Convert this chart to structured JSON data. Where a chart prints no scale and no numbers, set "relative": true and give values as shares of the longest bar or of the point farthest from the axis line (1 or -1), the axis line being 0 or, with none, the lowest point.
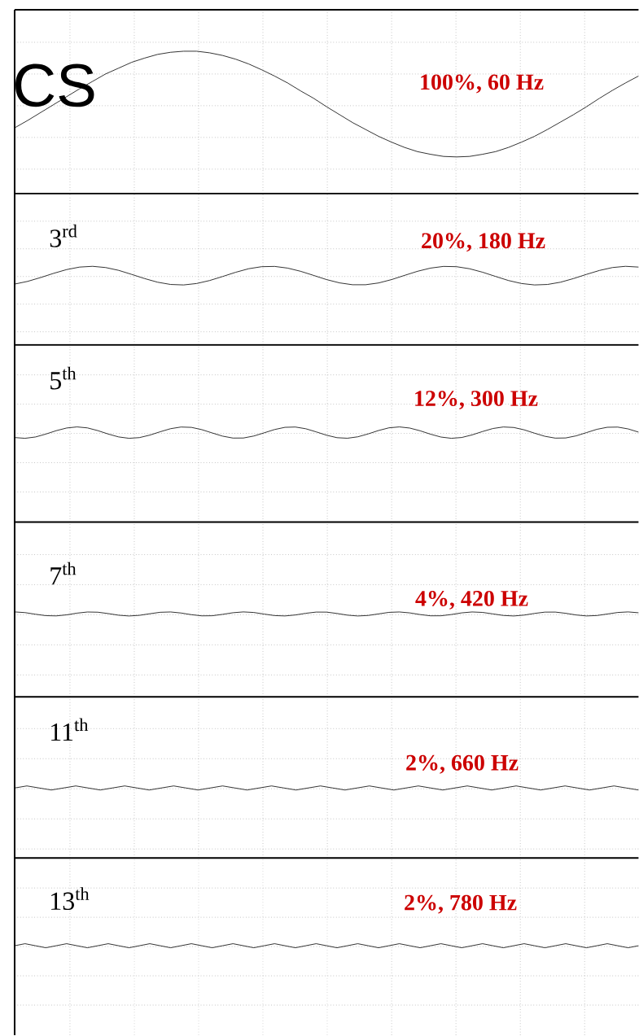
{
  "chart_data": [
    {
      "type": "line",
      "relative": true,
      "grid": true,
      "categories": [
        null,
        null,
        null,
        null,
        null,
        null,
        null,
        null,
        null,
        null,
        null,
        null,
        null,
        null,
        null,
        null,
        null,
        null,
        null,
        null,
        null,
        null,
        null,
        null,
        null,
        null,
        null,
        null,
        null,
        null,
        null,
        null,
        null,
        null,
        null,
        null,
        null,
        null,
        null,
        null,
        null,
        null,
        null,
        null,
        null,
        null,
        null,
        null,
        null
      ],
      "series": [
        {
          "color": "#000000",
          "values": [
            -0.45,
            -0.31,
            -0.16,
            -0.01,
            0.14,
            0.29,
            0.43,
            0.57,
            0.68,
            0.79,
            0.87,
            0.94,
            0.98,
            1.0,
            1.0,
            0.97,
            0.92,
            0.85,
            0.76,
            0.65,
            0.53,
            0.4,
            0.25,
            0.11,
            -0.05,
            -0.2,
            -0.35,
            -0.48,
            -0.61,
            -0.72,
            -0.82,
            -0.9,
            -0.95,
            -0.99,
            -1.0,
            -0.99,
            -0.95,
            -0.9,
            -0.82,
            -0.72,
            -0.61,
            -0.48,
            -0.34,
            -0.2,
            -0.05,
            0.11,
            0.26,
            0.4,
            0.53
          ]
        }
      ],
      "annotations": [
        "CS",
        "100%, 60 Hz"
      ]
    },
    {
      "type": "line",
      "relative": true,
      "grid": true,
      "categories": [
        null,
        null,
        null,
        null,
        null,
        null,
        null,
        null,
        null,
        null,
        null,
        null,
        null,
        null,
        null,
        null,
        null,
        null,
        null,
        null,
        null,
        null,
        null,
        null,
        null,
        null,
        null,
        null,
        null,
        null,
        null,
        null,
        null,
        null,
        null,
        null,
        null,
        null,
        null,
        null,
        null,
        null,
        null,
        null,
        null,
        null,
        null,
        null,
        null
      ],
      "series": [
        {
          "color": "#000000",
          "values": [
            -0.9,
            -0.61,
            -0.2,
            0.25,
            0.65,
            0.92,
            1.0,
            0.87,
            0.57,
            0.14,
            -0.31,
            -0.7,
            -0.94,
            -0.99,
            -0.84,
            -0.52,
            -0.09,
            0.36,
            0.74,
            0.96,
            0.99,
            0.81,
            0.47,
            0.03,
            -0.42,
            -0.77,
            -0.97,
            -0.97,
            -0.78,
            -0.42,
            0.03,
            0.47,
            0.81,
            0.99,
            0.96,
            0.74,
            0.37,
            -0.08,
            -0.52,
            -0.84,
            -0.99,
            -0.94,
            -0.7,
            -0.31,
            0.14,
            0.56,
            0.87,
            1.0,
            0.92
          ]
        }
      ],
      "annotations": [
        "3$^{rd}$",
        "20%, 180 Hz"
      ]
    },
    {
      "type": "line",
      "relative": true,
      "grid": true,
      "categories": [
        null,
        null,
        null,
        null,
        null,
        null,
        null,
        null,
        null,
        null,
        null,
        null,
        null,
        null,
        null,
        null,
        null,
        null,
        null,
        null,
        null,
        null,
        null,
        null,
        null,
        null,
        null,
        null,
        null,
        null,
        null,
        null,
        null,
        null,
        null,
        null,
        null,
        null,
        null,
        null,
        null,
        null,
        null,
        null,
        null,
        null,
        null,
        null,
        null,
        null,
        null,
        null,
        null,
        null,
        null,
        null,
        null,
        null,
        null,
        null,
        null
      ],
      "series": [
        {
          "color": "#000000",
          "values": [
            -0.87,
            -1.0,
            -0.77,
            -0.26,
            0.34,
            0.81,
            1.0,
            0.83,
            0.35,
            -0.25,
            -0.76,
            -1.0,
            -0.88,
            -0.44,
            0.15,
            0.69,
            0.98,
            0.92,
            0.52,
            -0.06,
            -0.62,
            -0.96,
            -0.95,
            -0.6,
            -0.04,
            0.54,
            0.93,
            0.98,
            0.68,
            0.13,
            -0.46,
            -0.89,
            -0.99,
            -0.74,
            -0.23,
            0.37,
            0.84,
            1.0,
            0.8,
            0.32,
            -0.28,
            -0.78,
            -1.0,
            -0.86,
            -0.4,
            0.19,
            0.72,
            0.99,
            0.9,
            0.49,
            -0.1,
            -0.65,
            -0.97,
            -0.94,
            -0.57,
            0.0,
            0.58,
            0.94,
            0.97,
            0.65,
            0.09
          ]
        }
      ],
      "annotations": [
        "5$^{th}$",
        "12%, 300 Hz"
      ]
    },
    {
      "type": "line",
      "relative": true,
      "grid": true,
      "categories": [
        null,
        null,
        null,
        null,
        null,
        null,
        null,
        null,
        null,
        null,
        null,
        null,
        null,
        null,
        null,
        null,
        null,
        null,
        null,
        null,
        null,
        null,
        null,
        null,
        null,
        null,
        null,
        null,
        null,
        null,
        null,
        null,
        null,
        null,
        null,
        null,
        null,
        null,
        null,
        null,
        null,
        null,
        null,
        null,
        null,
        null,
        null,
        null,
        null,
        null,
        null,
        null,
        null,
        null,
        null,
        null,
        null,
        null,
        null,
        null,
        null
      ],
      "series": [
        {
          "color": "#000000",
          "values": [
            1.0,
            0.66,
            -0.14,
            -0.84,
            -0.96,
            -0.44,
            0.4,
            0.96,
            0.86,
            0.18,
            -0.62,
            -1.0,
            -0.68,
            0.1,
            0.82,
            0.98,
            0.46,
            -0.36,
            -0.94,
            -0.88,
            -0.2,
            0.6,
            1.0,
            0.72,
            -0.06,
            -0.8,
            -0.98,
            -0.5,
            0.32,
            0.92,
            0.9,
            0.24,
            -0.58,
            -1.0,
            -0.74,
            0.02,
            0.78,
            0.98,
            0.52,
            -0.3,
            -0.92,
            -0.9,
            -0.28,
            0.54,
            0.98,
            0.76,
            0.02,
            -0.74,
            -1.0,
            -0.56,
            0.26,
            0.9,
            0.92,
            0.32,
            -0.5,
            -0.98,
            -0.78,
            -0.04,
            0.72,
            1.0,
            0.58
          ]
        }
      ],
      "annotations": [
        "7$^{th}$",
        "4%, 420 Hz"
      ]
    },
    {
      "type": "line",
      "relative": true,
      "grid": true,
      "categories": [
        null,
        null,
        null,
        null,
        null,
        null,
        null,
        null,
        null,
        null,
        null,
        null,
        null,
        null,
        null,
        null,
        null,
        null,
        null,
        null,
        null,
        null,
        null,
        null,
        null,
        null,
        null,
        null,
        null,
        null,
        null,
        null,
        null,
        null,
        null,
        null,
        null,
        null,
        null,
        null,
        null,
        null,
        null,
        null,
        null,
        null,
        null,
        null,
        null,
        null,
        null,
        null
      ],
      "series": [
        {
          "color": "#000000",
          "values": [
            0,
            1,
            0,
            -1,
            0,
            1,
            0,
            -1,
            0,
            1,
            0,
            -1,
            0,
            1,
            0,
            -1,
            0,
            1,
            0,
            -1,
            0,
            1,
            0,
            -1,
            0,
            1,
            0,
            -1,
            0,
            1,
            0,
            -1,
            0,
            1,
            0,
            -1,
            0,
            1,
            0,
            -1,
            0,
            1,
            0,
            -1,
            0,
            1,
            0,
            -1,
            0,
            1,
            0,
            -1
          ]
        }
      ],
      "annotations": [
        "11$^{th}$",
        "2%, 660 Hz"
      ]
    },
    {
      "type": "line",
      "relative": true,
      "grid": true,
      "categories": [
        null,
        null,
        null,
        null,
        null,
        null,
        null,
        null,
        null,
        null,
        null,
        null,
        null,
        null,
        null,
        null,
        null,
        null,
        null,
        null,
        null,
        null,
        null,
        null,
        null,
        null,
        null,
        null,
        null,
        null,
        null,
        null,
        null,
        null,
        null,
        null,
        null,
        null,
        null,
        null,
        null,
        null,
        null,
        null,
        null,
        null,
        null,
        null,
        null,
        null,
        null,
        null,
        null,
        null,
        null,
        null,
        null,
        null,
        null,
        null,
        null
      ],
      "series": [
        {
          "color": "#000000",
          "values": [
            0,
            1,
            0,
            -1,
            0,
            1,
            0,
            -1,
            0,
            1,
            0,
            -1,
            0,
            1,
            0,
            -1,
            0,
            1,
            0,
            -1,
            0,
            1,
            0,
            -1,
            0,
            1,
            0,
            -1,
            0,
            1,
            0,
            -1,
            0,
            1,
            0,
            -1,
            0,
            1,
            0,
            -1,
            0,
            1,
            0,
            -1,
            0,
            1,
            0,
            -1,
            0,
            1,
            0,
            -1,
            0,
            1,
            0,
            -1,
            0,
            1,
            0,
            -1,
            0
          ]
        }
      ],
      "annotations": [
        "13$^{th}$",
        "2%, 780 Hz"
      ]
    }
  ]
}
